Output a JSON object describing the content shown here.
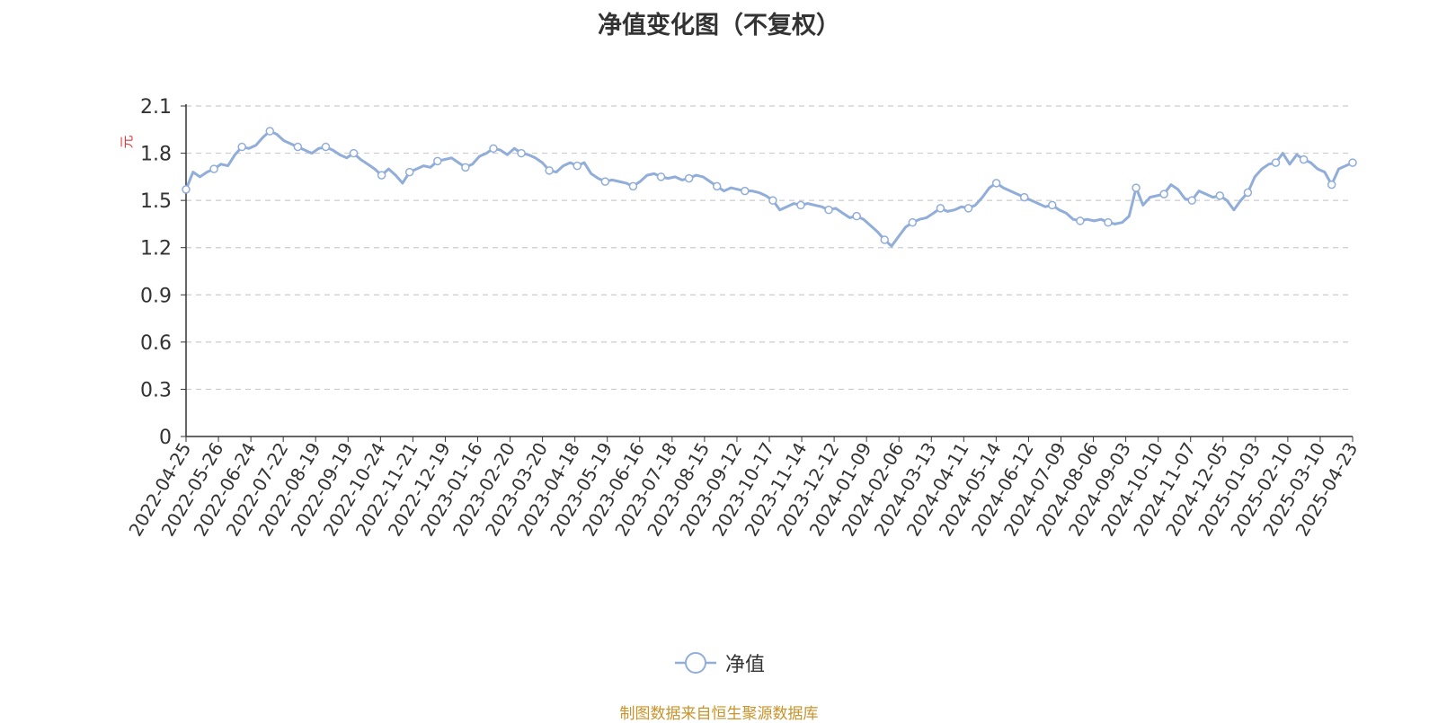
{
  "chart_data": {
    "type": "line",
    "title": "净值变化图（不复权）",
    "ylabel": "元",
    "xlabel": "",
    "ylim": [
      0,
      2.1
    ],
    "yticks": [
      "0",
      "0.3",
      "0.6",
      "0.9",
      "1.2",
      "1.5",
      "1.8",
      "2.1"
    ],
    "grid": true,
    "legend_position": "bottom-center",
    "series_color": "#91add9",
    "x_tick_labels": [
      "2022-04-25",
      "2022-05-26",
      "2022-06-24",
      "2022-07-22",
      "2022-08-19",
      "2022-09-19",
      "2022-10-24",
      "2022-11-21",
      "2022-12-19",
      "2023-01-16",
      "2023-02-20",
      "2023-03-20",
      "2023-04-18",
      "2023-05-19",
      "2023-06-16",
      "2023-07-18",
      "2023-08-15",
      "2023-09-12",
      "2023-10-17",
      "2023-11-14",
      "2023-12-12",
      "2024-01-09",
      "2024-02-06",
      "2024-03-13",
      "2024-04-11",
      "2024-05-14",
      "2024-06-12",
      "2024-07-09",
      "2024-08-06",
      "2024-09-03",
      "2024-10-10",
      "2024-11-07",
      "2024-12-05",
      "2025-01-03",
      "2025-02-10",
      "2025-03-10",
      "2025-04-23"
    ],
    "series": [
      {
        "name": "净值",
        "values": [
          1.57,
          1.68,
          1.65,
          1.68,
          1.7,
          1.73,
          1.72,
          1.79,
          1.84,
          1.83,
          1.85,
          1.9,
          1.94,
          1.92,
          1.88,
          1.86,
          1.84,
          1.82,
          1.8,
          1.83,
          1.84,
          1.82,
          1.79,
          1.77,
          1.8,
          1.76,
          1.73,
          1.7,
          1.66,
          1.7,
          1.66,
          1.61,
          1.68,
          1.7,
          1.72,
          1.71,
          1.75,
          1.76,
          1.77,
          1.74,
          1.71,
          1.73,
          1.78,
          1.8,
          1.83,
          1.82,
          1.79,
          1.83,
          1.8,
          1.79,
          1.77,
          1.74,
          1.69,
          1.68,
          1.72,
          1.74,
          1.72,
          1.74,
          1.67,
          1.64,
          1.62,
          1.63,
          1.62,
          1.61,
          1.59,
          1.62,
          1.66,
          1.67,
          1.65,
          1.64,
          1.65,
          1.63,
          1.64,
          1.66,
          1.65,
          1.62,
          1.59,
          1.56,
          1.58,
          1.57,
          1.56,
          1.56,
          1.55,
          1.53,
          1.5,
          1.44,
          1.46,
          1.48,
          1.47,
          1.48,
          1.47,
          1.46,
          1.44,
          1.45,
          1.42,
          1.39,
          1.4,
          1.38,
          1.34,
          1.3,
          1.25,
          1.21,
          1.27,
          1.33,
          1.36,
          1.38,
          1.39,
          1.42,
          1.45,
          1.43,
          1.44,
          1.46,
          1.45,
          1.47,
          1.52,
          1.58,
          1.61,
          1.58,
          1.56,
          1.54,
          1.52,
          1.5,
          1.48,
          1.46,
          1.47,
          1.44,
          1.42,
          1.38,
          1.37,
          1.38,
          1.37,
          1.38,
          1.36,
          1.35,
          1.36,
          1.4,
          1.58,
          1.47,
          1.52,
          1.53,
          1.54,
          1.6,
          1.57,
          1.51,
          1.5,
          1.56,
          1.54,
          1.52,
          1.53,
          1.5,
          1.44,
          1.5,
          1.55,
          1.65,
          1.7,
          1.73,
          1.74,
          1.8,
          1.73,
          1.79,
          1.76,
          1.74,
          1.7,
          1.68,
          1.6,
          1.7,
          1.72,
          1.74
        ]
      }
    ]
  },
  "legend": {
    "label": "净值"
  },
  "footer": {
    "source": "制图数据来自恒生聚源数据库"
  }
}
